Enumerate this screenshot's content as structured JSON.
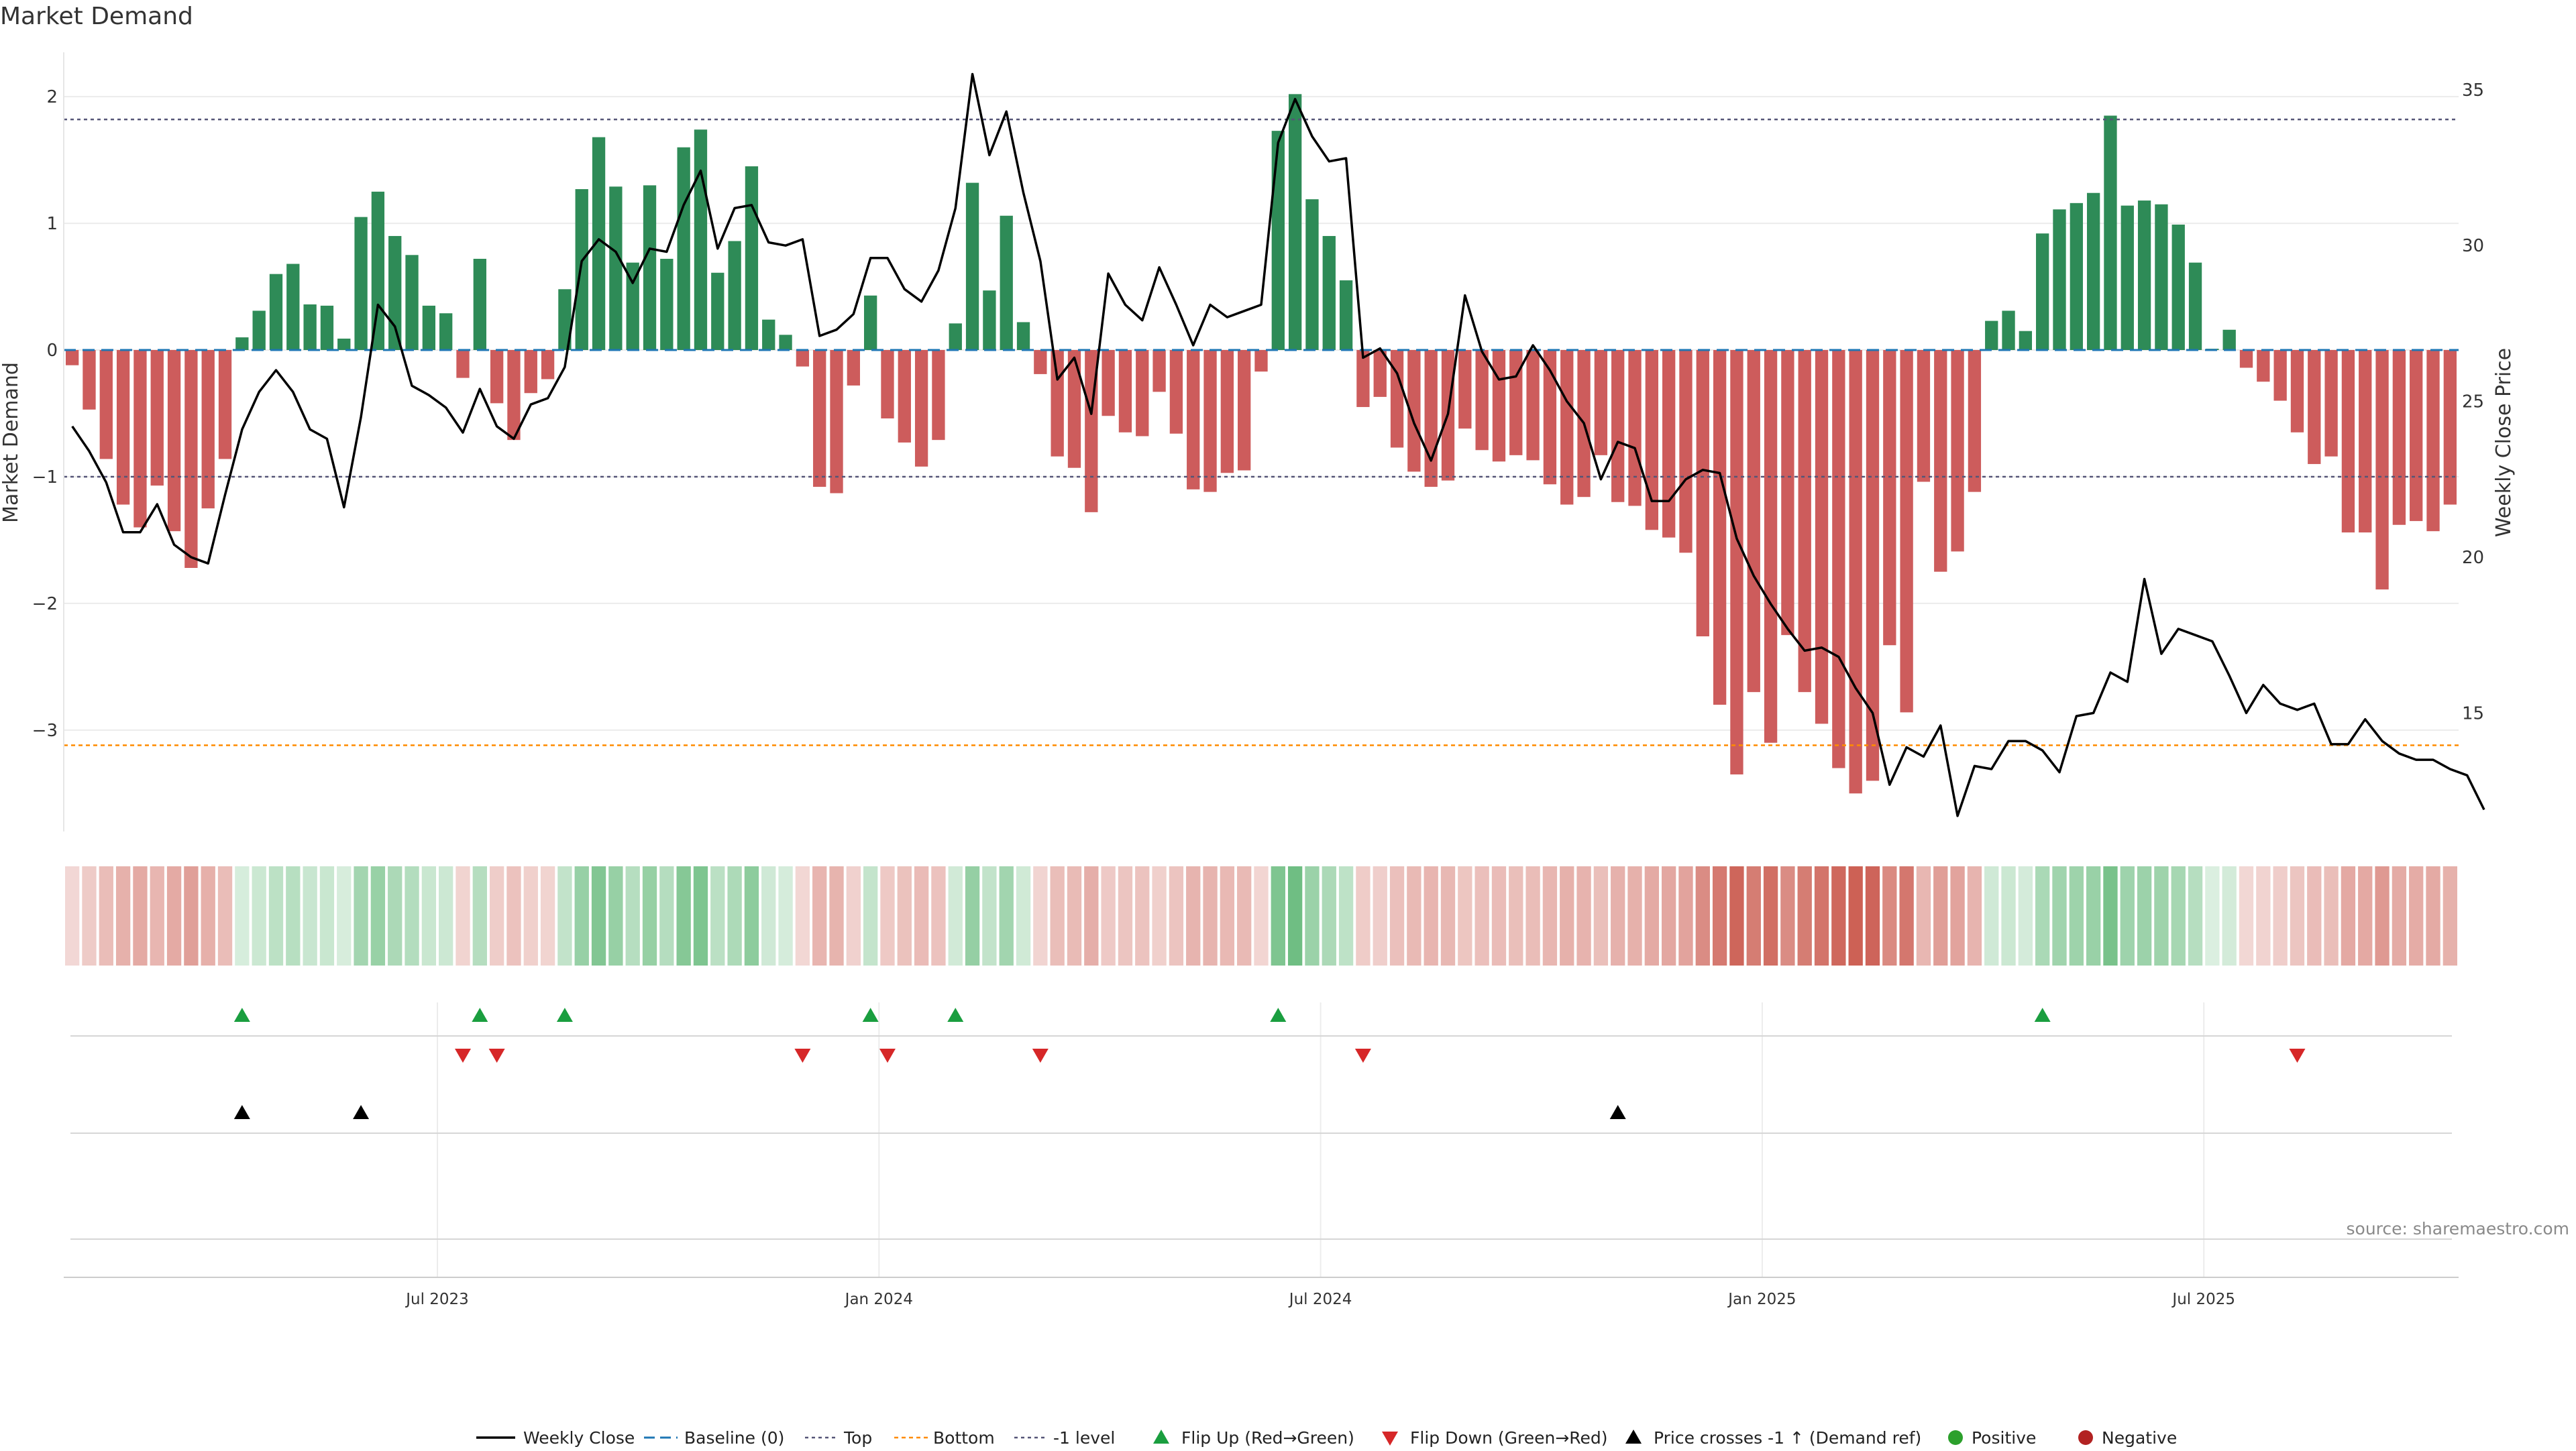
{
  "chart_data": {
    "type": "bar",
    "title": "Market Demand",
    "ylabel": "Market Demand",
    "y2label": "Weekly Close Price",
    "ylim": [
      -3.8,
      2.35
    ],
    "y2lim": [
      11.2,
      36.2
    ],
    "yticks": [
      "2",
      "1",
      "0",
      "−1",
      "−2",
      "−3"
    ],
    "yticks_values": [
      2,
      1,
      0,
      -1,
      -2,
      -3
    ],
    "y2ticks": [
      "35",
      "30",
      "25",
      "20",
      "15"
    ],
    "y2ticks_values": [
      35,
      30,
      25,
      20,
      15
    ],
    "xticks": [
      "Jul 2023",
      "Jan 2024",
      "Jul 2024",
      "Jan 2025",
      "Jul 2025"
    ],
    "xticks_weeks": [
      22,
      48,
      74,
      100,
      126
    ],
    "reference_lines": {
      "top": 1.82,
      "bottom": -3.12,
      "minus_one": -1.0,
      "baseline": 0
    },
    "series": [
      {
        "name": "Market Demand",
        "values": [
          -0.12,
          -0.47,
          -0.86,
          -1.22,
          -1.4,
          -1.07,
          -1.43,
          -1.72,
          -1.25,
          -0.86,
          0.1,
          0.31,
          0.6,
          0.68,
          0.36,
          0.35,
          0.09,
          1.05,
          1.25,
          0.9,
          0.75,
          0.35,
          0.29,
          -0.22,
          0.72,
          -0.42,
          -0.71,
          -0.34,
          -0.23,
          0.48,
          1.27,
          1.68,
          1.29,
          0.69,
          1.3,
          0.72,
          1.6,
          1.74,
          0.61,
          0.86,
          1.45,
          0.24,
          0.12,
          -0.13,
          -1.08,
          -1.13,
          -0.28,
          0.43,
          -0.54,
          -0.73,
          -0.92,
          -0.71,
          0.21,
          1.32,
          0.47,
          1.06,
          0.22,
          -0.19,
          -0.84,
          -0.93,
          -1.28,
          -0.52,
          -0.65,
          -0.68,
          -0.33,
          -0.66,
          -1.1,
          -1.12,
          -0.97,
          -0.95,
          -0.17,
          1.73,
          2.02,
          1.19,
          0.9,
          0.55,
          -0.45,
          -0.37,
          -0.77,
          -0.96,
          -1.08,
          -1.03,
          -0.62,
          -0.79,
          -0.88,
          -0.83,
          -0.87,
          -1.06,
          -1.22,
          -1.16,
          -0.83,
          -1.2,
          -1.23,
          -1.42,
          -1.48,
          -1.6,
          -2.26,
          -2.8,
          -3.35,
          -2.7,
          -3.1,
          -2.25,
          -2.7,
          -2.95,
          -3.3,
          -3.5,
          -3.4,
          -2.33,
          -2.86,
          -1.04,
          -1.75,
          -1.59,
          -1.12,
          0.23,
          0.31,
          0.15,
          0.92,
          1.11,
          1.16,
          1.24,
          1.85,
          1.14,
          1.18,
          1.15,
          0.99,
          0.69,
          0.01,
          0.16,
          -0.14,
          -0.25,
          -0.4,
          -0.65,
          -0.9,
          -0.84,
          -1.44,
          -1.44,
          -1.89,
          -1.38,
          -1.35,
          -1.43,
          -1.22
        ]
      },
      {
        "name": "Weekly Close",
        "values": [
          24.2,
          23.4,
          22.4,
          20.8,
          20.8,
          21.7,
          20.4,
          20.0,
          19.8,
          22.0,
          24.1,
          25.3,
          26.0,
          25.3,
          24.1,
          23.8,
          21.6,
          24.5,
          28.1,
          27.4,
          25.5,
          25.2,
          24.8,
          24.0,
          25.4,
          24.2,
          23.8,
          24.9,
          25.1,
          26.1,
          29.5,
          30.2,
          29.8,
          28.8,
          29.9,
          29.8,
          31.3,
          32.4,
          29.9,
          31.2,
          31.3,
          30.1,
          30.0,
          30.2,
          27.1,
          27.3,
          27.8,
          29.6,
          29.6,
          28.6,
          28.2,
          29.2,
          31.2,
          35.5,
          32.9,
          34.3,
          31.7,
          29.5,
          25.7,
          26.4,
          24.6,
          29.1,
          28.1,
          27.6,
          29.3,
          28.1,
          26.8,
          28.1,
          27.7,
          27.9,
          28.1,
          33.3,
          34.7,
          33.5,
          32.7,
          32.8,
          26.4,
          26.7,
          25.9,
          24.3,
          23.1,
          24.6,
          28.4,
          26.6,
          25.7,
          25.8,
          26.8,
          26.0,
          25.0,
          24.3,
          22.5,
          23.7,
          23.5,
          21.8,
          21.8,
          22.5,
          22.8,
          22.7,
          20.6,
          19.4,
          18.5,
          17.7,
          17.0,
          17.1,
          16.8,
          15.8,
          15.0,
          12.7,
          13.9,
          13.6,
          14.6,
          11.7,
          13.3,
          13.2,
          14.1,
          14.1,
          13.8,
          13.1,
          14.9,
          15.0,
          16.3,
          16.0,
          19.3,
          16.9,
          17.7,
          17.5,
          17.3,
          16.2,
          15.0,
          15.9,
          15.3,
          15.1,
          15.3,
          14.0,
          14.0,
          14.8,
          14.1,
          13.7,
          13.5,
          13.5,
          13.2,
          13.0,
          11.9
        ]
      }
    ],
    "flip_up_weeks": [
      10,
      24,
      29,
      47,
      52,
      71,
      116
    ],
    "flip_down_weeks": [
      23,
      25,
      43,
      48,
      57,
      76,
      131
    ],
    "price_cross_weeks": [
      10,
      17,
      91
    ],
    "legend": [
      "Weekly Close",
      "Baseline (0)",
      "Top",
      "Bottom",
      "-1 level",
      "Flip Up (Red→Green)",
      "Flip Down (Green→Red)",
      "Price crosses -1 ↑ (Demand ref)",
      "Positive",
      "Negative"
    ],
    "legend_position": "bottom-center",
    "colors": {
      "positive": "#2e8b57",
      "negative": "#cd5c5c",
      "line": "#000000",
      "baseline": "#1f77b4",
      "top": "#555577",
      "bottom": "#ff8c00",
      "flip_up": "#1a9e3f",
      "flip_down": "#d62728",
      "positive_dot": "#2ca02c",
      "negative_dot": "#b22222"
    }
  },
  "page": {
    "title": "Market Demand",
    "source": "source: sharemaestro.com"
  }
}
